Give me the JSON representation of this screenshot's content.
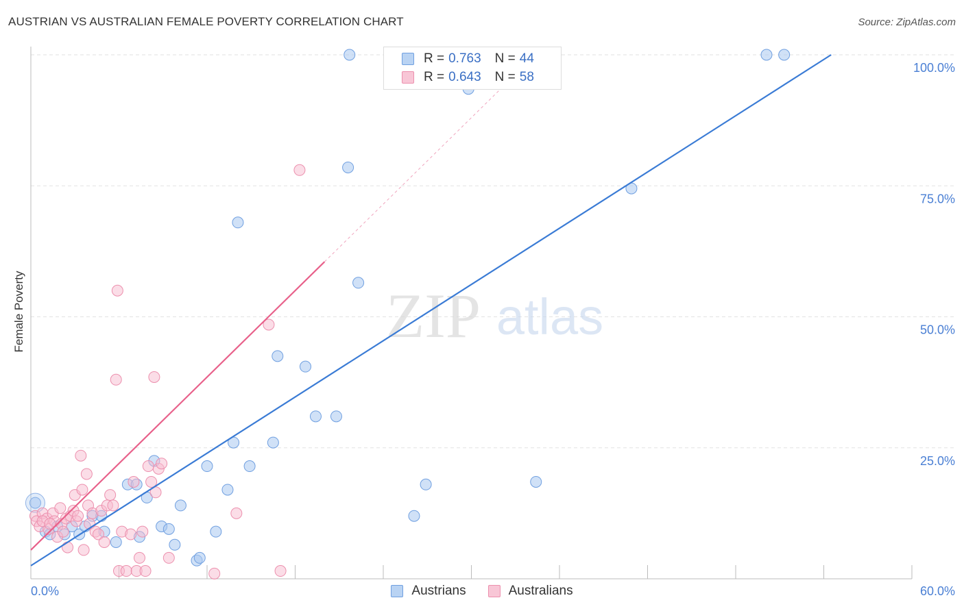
{
  "header": {
    "title": "AUSTRIAN VS AUSTRALIAN FEMALE POVERTY CORRELATION CHART",
    "source": "Source: ZipAtlas.com"
  },
  "watermark": {
    "zip": "ZIP",
    "atlas": "atlas"
  },
  "legend": {
    "rows": [
      {
        "r_label": "R =",
        "r_value": "0.763",
        "n_label": "N =",
        "n_value": "44"
      },
      {
        "r_label": "R =",
        "r_value": "0.643",
        "n_label": "N =",
        "n_value": "58"
      }
    ]
  },
  "bottom_legend": {
    "items": [
      "Austrians",
      "Australians"
    ]
  },
  "chart_data": {
    "type": "scatter",
    "title": "AUSTRIAN VS AUSTRALIAN FEMALE POVERTY CORRELATION CHART",
    "xlabel": "",
    "ylabel": "Female Poverty",
    "xlim": [
      0,
      60
    ],
    "ylim": [
      0,
      100
    ],
    "x_tick_labels": [
      "0.0%",
      "60.0%"
    ],
    "y_tick_labels": [
      "25.0%",
      "50.0%",
      "75.0%",
      "100.0%"
    ],
    "y_ticks": [
      25,
      50,
      75,
      100
    ],
    "grid": true,
    "legend_position": "top-center",
    "colors": {
      "austrians": "#3a7bd5",
      "australians": "#e8608a",
      "axis_text": "#4a7fd4"
    },
    "series": [
      {
        "name": "Austrians",
        "r": 0.763,
        "n": 44,
        "trend": {
          "x": [
            0,
            54.5
          ],
          "y": [
            2.5,
            100
          ]
        },
        "points": [
          [
            0.3,
            14.5
          ],
          [
            1.0,
            9.0
          ],
          [
            1.3,
            8.5
          ],
          [
            1.8,
            10.0
          ],
          [
            2.3,
            8.5
          ],
          [
            2.8,
            10.0
          ],
          [
            3.3,
            8.5
          ],
          [
            3.7,
            10.0
          ],
          [
            4.2,
            12.0
          ],
          [
            4.8,
            12.0
          ],
          [
            5.0,
            9.0
          ],
          [
            5.8,
            7.0
          ],
          [
            6.6,
            18.0
          ],
          [
            7.2,
            18.0
          ],
          [
            7.4,
            8.0
          ],
          [
            7.9,
            15.5
          ],
          [
            8.4,
            22.5
          ],
          [
            8.9,
            10.0
          ],
          [
            9.4,
            9.5
          ],
          [
            9.8,
            6.5
          ],
          [
            10.2,
            14.0
          ],
          [
            11.3,
            3.5
          ],
          [
            11.5,
            4.0
          ],
          [
            12.0,
            21.5
          ],
          [
            12.6,
            9.0
          ],
          [
            13.4,
            17.0
          ],
          [
            13.8,
            26.0
          ],
          [
            14.1,
            68.0
          ],
          [
            14.9,
            21.5
          ],
          [
            16.5,
            26.0
          ],
          [
            16.8,
            42.5
          ],
          [
            18.7,
            40.5
          ],
          [
            19.4,
            31.0
          ],
          [
            20.8,
            31.0
          ],
          [
            21.6,
            78.5
          ],
          [
            21.7,
            100.0
          ],
          [
            22.3,
            56.5
          ],
          [
            26.1,
            12.0
          ],
          [
            26.9,
            18.0
          ],
          [
            29.8,
            93.5
          ],
          [
            34.4,
            18.5
          ],
          [
            40.9,
            74.5
          ],
          [
            50.1,
            100.0
          ],
          [
            51.3,
            100.0
          ]
        ]
      },
      {
        "name": "Australians",
        "r": 0.643,
        "n": 58,
        "trend": {
          "x": [
            0,
            20
          ],
          "y": [
            5.5,
            60.5
          ]
        },
        "trend_extension": {
          "x": [
            20,
            32
          ],
          "y": [
            60.5,
            93.5
          ]
        },
        "points": [
          [
            0.3,
            12.0
          ],
          [
            0.4,
            11.0
          ],
          [
            0.6,
            10.0
          ],
          [
            0.8,
            12.5
          ],
          [
            1.1,
            11.5
          ],
          [
            1.2,
            9.5
          ],
          [
            1.5,
            12.5
          ],
          [
            1.6,
            11.0
          ],
          [
            1.8,
            8.0
          ],
          [
            2.0,
            13.5
          ],
          [
            2.1,
            10.5
          ],
          [
            2.4,
            11.5
          ],
          [
            2.5,
            6.0
          ],
          [
            2.7,
            12.0
          ],
          [
            2.9,
            13.0
          ],
          [
            3.0,
            16.0
          ],
          [
            3.1,
            11.0
          ],
          [
            3.4,
            23.5
          ],
          [
            3.5,
            17.0
          ],
          [
            3.6,
            5.5
          ],
          [
            3.8,
            20.0
          ],
          [
            3.9,
            14.0
          ],
          [
            4.0,
            10.5
          ],
          [
            4.2,
            12.5
          ],
          [
            4.4,
            9.0
          ],
          [
            4.6,
            8.5
          ],
          [
            4.8,
            13.0
          ],
          [
            5.0,
            7.0
          ],
          [
            5.2,
            14.0
          ],
          [
            5.4,
            16.0
          ],
          [
            5.6,
            14.0
          ],
          [
            5.8,
            38.0
          ],
          [
            5.9,
            55.0
          ],
          [
            6.0,
            1.5
          ],
          [
            6.2,
            9.0
          ],
          [
            6.5,
            1.5
          ],
          [
            6.8,
            8.5
          ],
          [
            7.0,
            18.5
          ],
          [
            7.2,
            1.5
          ],
          [
            7.4,
            4.0
          ],
          [
            7.6,
            9.0
          ],
          [
            7.8,
            1.5
          ],
          [
            8.0,
            21.5
          ],
          [
            8.2,
            18.5
          ],
          [
            8.4,
            38.5
          ],
          [
            8.5,
            16.5
          ],
          [
            8.7,
            21.0
          ],
          [
            8.9,
            22.0
          ],
          [
            9.4,
            4.0
          ],
          [
            12.5,
            1.0
          ],
          [
            14.0,
            12.5
          ],
          [
            16.2,
            48.5
          ],
          [
            17.0,
            1.5
          ],
          [
            18.3,
            78.0
          ],
          [
            0.8,
            11.0
          ],
          [
            1.3,
            10.5
          ],
          [
            2.2,
            9.0
          ],
          [
            3.2,
            12.0
          ]
        ]
      }
    ]
  }
}
